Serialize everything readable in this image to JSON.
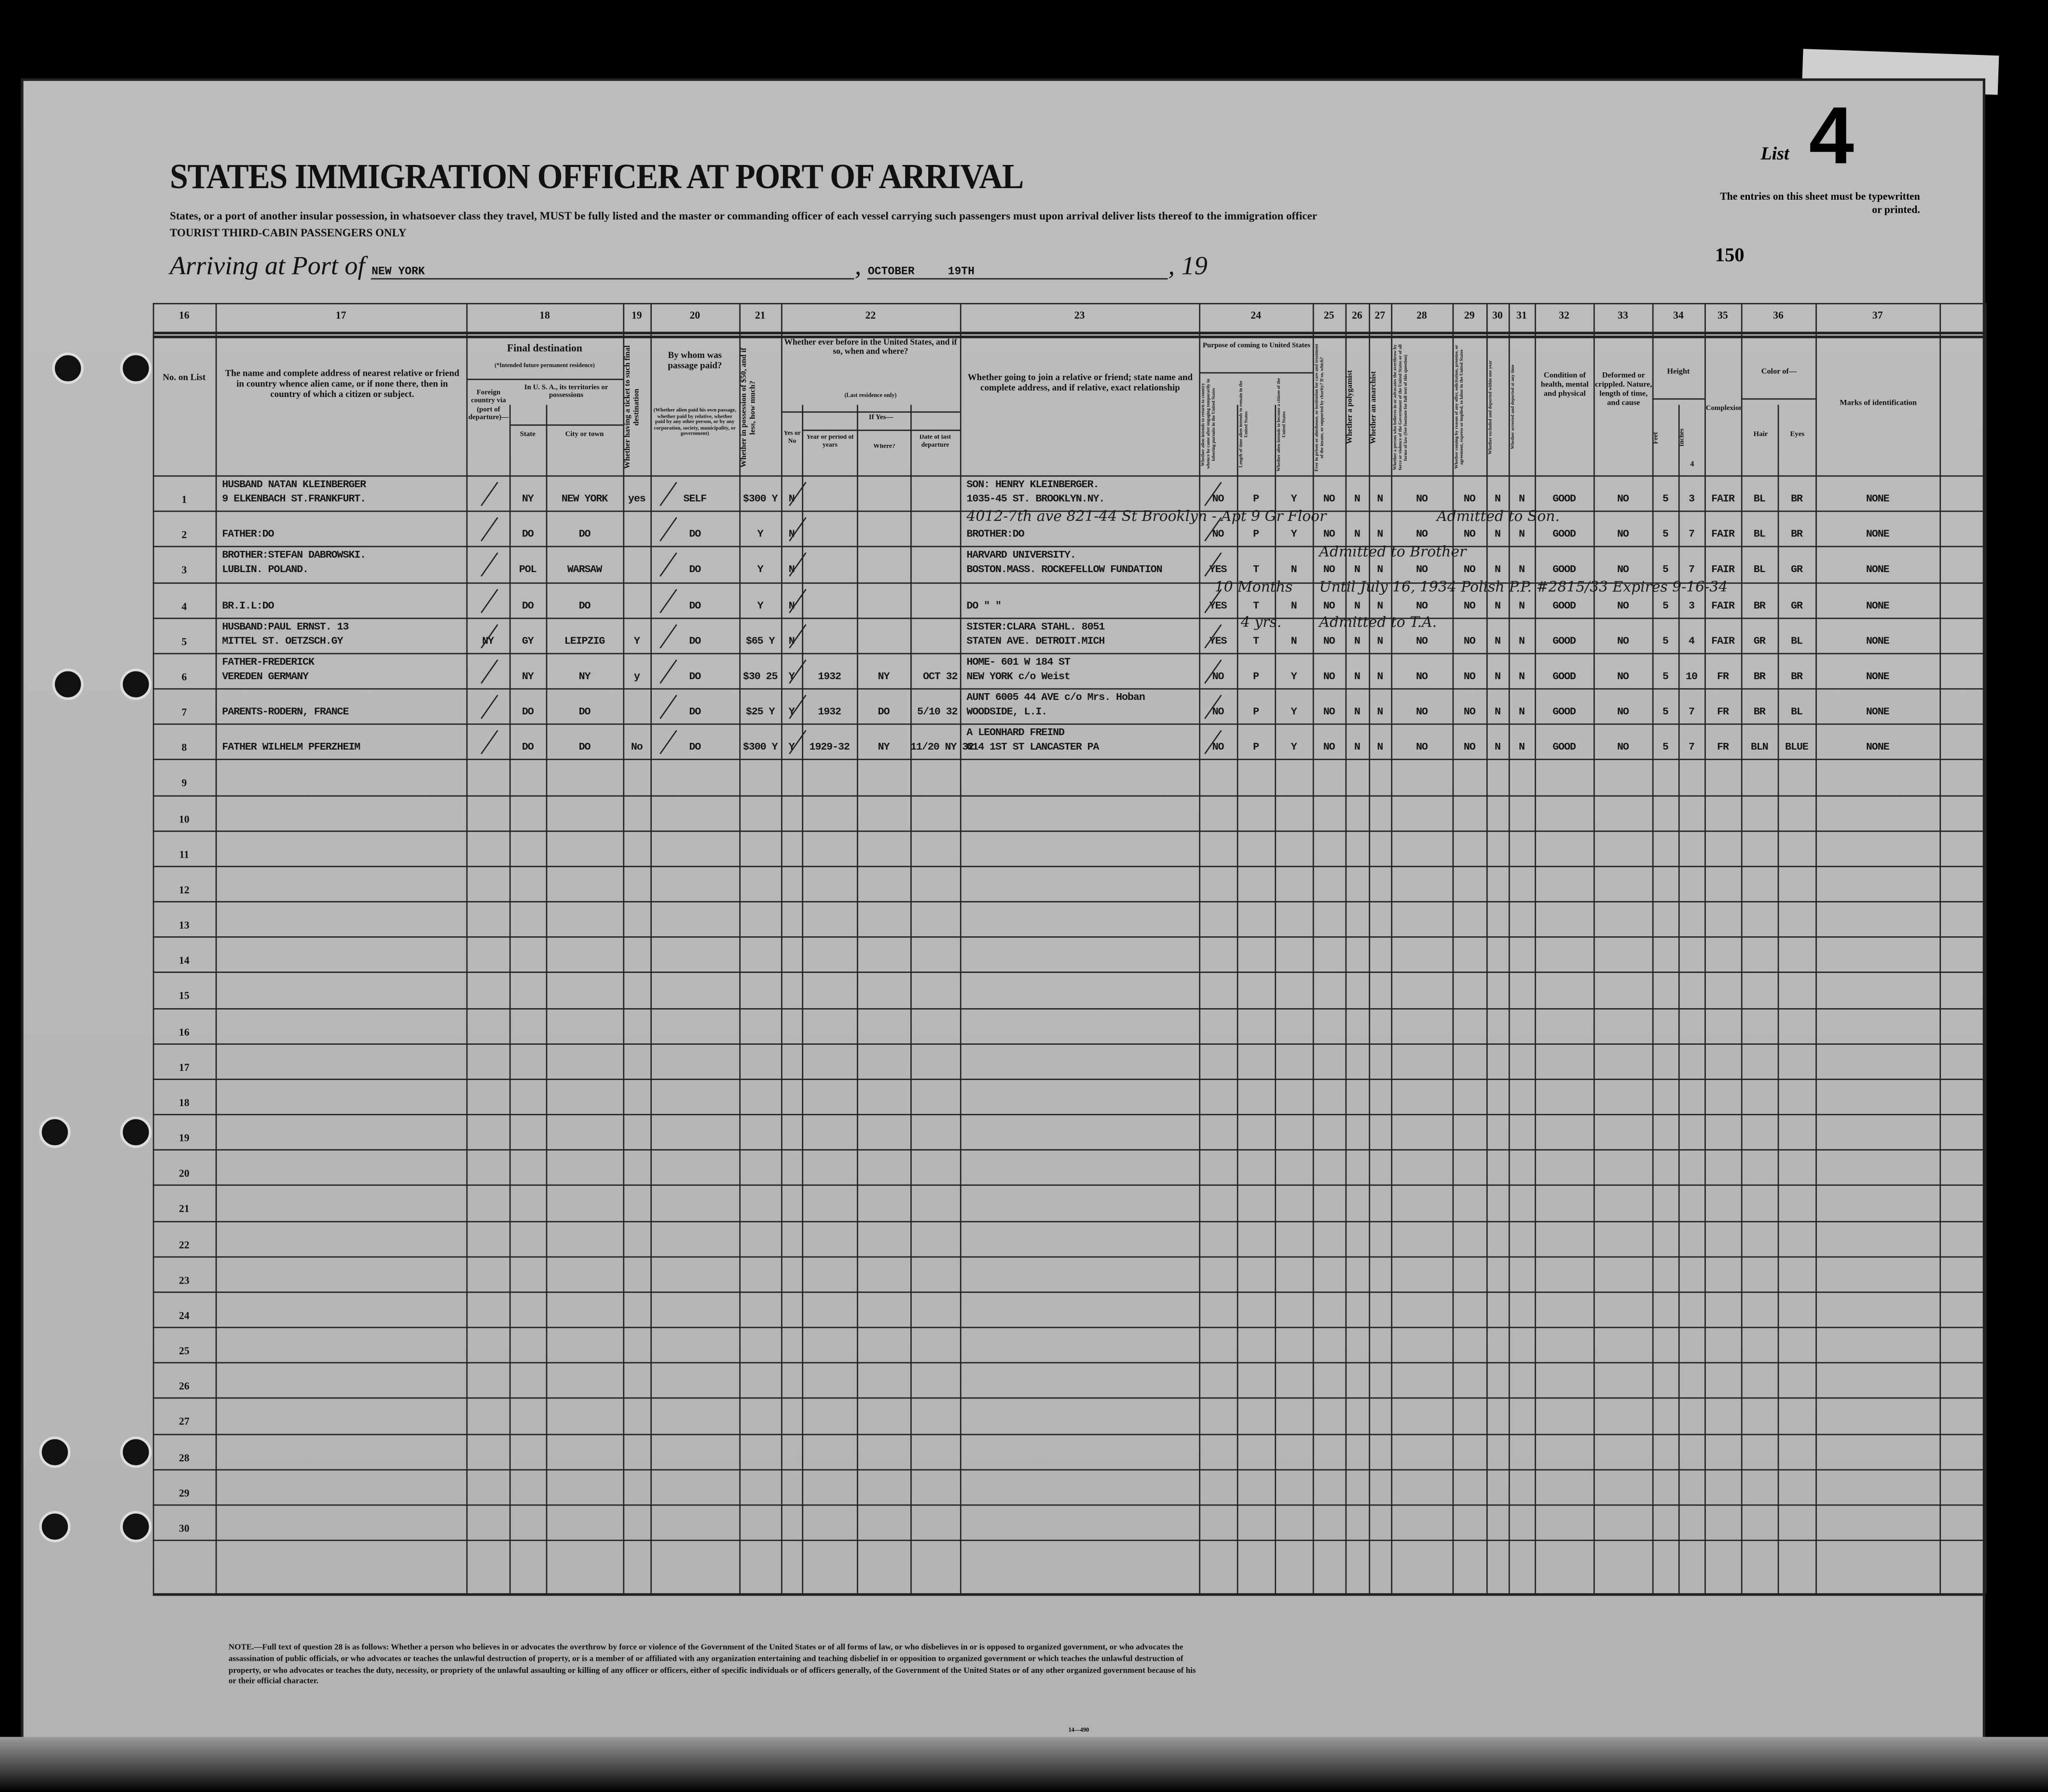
{
  "header": {
    "title": "STATES IMMIGRATION OFFICER AT PORT OF ARRIVAL",
    "subtitle": "States, or a port of another insular possession, in whatsoever class they travel, MUST be fully listed and the master or commanding officer of each vessel carrying such passengers must upon arrival deliver lists thereof to the immigration officer",
    "class_line": "TOURIST THIRD-CABIN PASSENGERS ONLY",
    "arriving_label": "Arriving at Port of",
    "port": "NEW YORK",
    "month": "OCTOBER",
    "day": "19TH",
    "year_prefix": "19",
    "list_label": "List",
    "list_number": "4",
    "entries_note": "The entries on this sheet must be typewritten or printed.",
    "sheet_number": "150"
  },
  "columns": {
    "c16": {
      "num": "16",
      "label": "No. on List"
    },
    "c17": {
      "num": "17",
      "label": "The name and complete address of nearest relative or friend in country whence alien came, or if none there, then in country of which a citizen or subject."
    },
    "c18": {
      "num": "18",
      "label": "Final destination",
      "sub": "(*Intended future permanent residence)",
      "foreign": "Foreign country via (port of departure)—",
      "usa": "In U. S. A., its territories or possessions",
      "state": "State",
      "city": "City or town"
    },
    "c19": {
      "num": "19",
      "label": "Whether having a ticket to such final destination"
    },
    "c20": {
      "num": "20",
      "label": "By whom was passage paid?",
      "sub": "(Whether alien paid his own passage, whether paid by relative, whether paid by any other person, or by any corporation, society, municipality, or government)"
    },
    "c21": {
      "num": "21",
      "label": "Whether in possession of $50, and if less, how much?"
    },
    "c22": {
      "num": "22",
      "label": "Whether ever before in the United States, and if so, when and where?",
      "sub": "(Last residence only)",
      "yesno": "Yes or No",
      "ifyes": "If Yes—",
      "year": "Year or period of years",
      "where": "Where?",
      "date": "Date of last departure"
    },
    "c23": {
      "num": "23",
      "label": "Whether going to join a relative or friend; state name and complete address, and if relative, exact relationship"
    },
    "c24": {
      "num": "24",
      "label": "Purpose of coming to United States",
      "a": "Whether alien intends to return to country whence he came after engaging temporarily in laboring pursuits in the United States",
      "b": "Length of time alien intends to remain in the United States",
      "c": "Whether alien intends to become a citizen of the United States"
    },
    "c25": {
      "num": "25",
      "label": "Ever in prison or almshouse, or institution for care and treatment of the insane, or supported by charity? If so, which?"
    },
    "c26": {
      "num": "26",
      "label": "Whether a polygamist"
    },
    "c27": {
      "num": "27",
      "label": "Whether an anarchist"
    },
    "c28": {
      "num": "28",
      "label": "Whether a person who believes in or advocates the overthrow by force or violence of the Government of the United States or of all forms of law (See footnote for full text of this question)"
    },
    "c29": {
      "num": "29",
      "label": "Whether coming by reason of any offer, solicitation, promise, or agreement, express or implied, to labor in the United States"
    },
    "c30": {
      "num": "30",
      "label": "Whether excluded and deported within one year"
    },
    "c31": {
      "num": "31",
      "label": "Whether arrested and deported at any time"
    },
    "c32": {
      "num": "32",
      "label": "Condition of health, mental and physical"
    },
    "c33": {
      "num": "33",
      "label": "Deformed or crippled. Nature, length of time, and cause"
    },
    "c34": {
      "num": "34",
      "label": "Height",
      "feet": "Feet",
      "inches": "Inches",
      "extra": "4"
    },
    "c35": {
      "num": "35",
      "label": "Complexion"
    },
    "c36": {
      "num": "36",
      "label": "Color of—",
      "hair": "Hair",
      "eyes": "Eyes"
    },
    "c37": {
      "num": "37",
      "label": "Marks of identification"
    }
  },
  "row_numbers": [
    "1",
    "2",
    "3",
    "4",
    "5",
    "6",
    "7",
    "8",
    "9",
    "10",
    "11",
    "12",
    "13",
    "14",
    "15",
    "16",
    "17",
    "18",
    "19",
    "20",
    "21",
    "22",
    "23",
    "24",
    "25",
    "26",
    "27",
    "28",
    "29",
    "30"
  ],
  "passengers": [
    {
      "name": [
        "HUSBAND NATAN KLEINBERGER",
        "9 ELKENBACH ST.FRANKFURT."
      ],
      "foreign": "",
      "state": "NY",
      "city": "NEW YORK",
      "ticket": "yes",
      "paid": "SELF",
      "money": "$300 Y",
      "before": "N",
      "year": "",
      "where": "",
      "date": "",
      "relative": [
        "SON: HENRY KLEINBERGER.",
        "1035-45 ST. BROOKLYN.NY."
      ],
      "p1": "NO",
      "p2": "P",
      "p3": "Y",
      "q25": "NO",
      "q26": "N",
      "q27": "N",
      "q28": "NO",
      "q29": "NO",
      "q30": "N",
      "q31": "N",
      "cond": "GOOD",
      "def": "NO",
      "feet": "5",
      "inch": "3",
      "comp": "FAIR",
      "hair": "BL",
      "eyes": "BR",
      "marks": "NONE"
    },
    {
      "name": [
        "",
        "FATHER:DO"
      ],
      "foreign": "",
      "state": "DO",
      "city": "DO",
      "ticket": "",
      "paid": "DO",
      "money": "Y",
      "before": "N",
      "year": "",
      "where": "",
      "date": "",
      "relative": [
        "",
        "BROTHER:DO"
      ],
      "p1": "NO",
      "p2": "P",
      "p3": "Y",
      "q25": "NO",
      "q26": "N",
      "q27": "N",
      "q28": "NO",
      "q29": "NO",
      "q30": "N",
      "q31": "N",
      "cond": "GOOD",
      "def": "NO",
      "feet": "5",
      "inch": "7",
      "comp": "FAIR",
      "hair": "BL",
      "eyes": "BR",
      "marks": "NONE"
    },
    {
      "name": [
        "BROTHER:STEFAN DABROWSKI.",
        "LUBLIN. POLAND."
      ],
      "foreign": "",
      "state": "POL",
      "city": "WARSAW",
      "ticket": "",
      "paid": "DO",
      "money": "Y",
      "before": "N",
      "year": "",
      "where": "",
      "date": "",
      "relative": [
        "HARVARD UNIVERSITY.",
        "BOSTON.MASS. ROCKEFELLOW FUNDATION"
      ],
      "p1": "YES",
      "p2": "T",
      "p3": "N",
      "q25": "NO",
      "q26": "N",
      "q27": "N",
      "q28": "NO",
      "q29": "NO",
      "q30": "N",
      "q31": "N",
      "cond": "GOOD",
      "def": "NO",
      "feet": "5",
      "inch": "7",
      "comp": "FAIR",
      "hair": "BL",
      "eyes": "GR",
      "marks": "NONE"
    },
    {
      "name": [
        "",
        "BR.I.L:DO"
      ],
      "foreign": "",
      "state": "DO",
      "city": "DO",
      "ticket": "",
      "paid": "DO",
      "money": "Y",
      "before": "N",
      "year": "",
      "where": "",
      "date": "",
      "relative": [
        "",
        "DO  \"  \""
      ],
      "p1": "YES",
      "p2": "T",
      "p3": "N",
      "q25": "NO",
      "q26": "N",
      "q27": "N",
      "q28": "NO",
      "q29": "NO",
      "q30": "N",
      "q31": "N",
      "cond": "GOOD",
      "def": "NO",
      "feet": "5",
      "inch": "3",
      "comp": "FAIR",
      "hair": "BR",
      "eyes": "GR",
      "marks": "NONE"
    },
    {
      "name": [
        "HUSBAND:PAUL ERNST. 13",
        "MITTEL ST. OETZSCH.GY"
      ],
      "foreign": "NY",
      "state": "GY",
      "city": "LEIPZIG",
      "ticket": "Y",
      "paid": "DO",
      "money": "$65 Y",
      "before": "N",
      "year": "",
      "where": "",
      "date": "",
      "relative": [
        "SISTER:CLARA STAHL. 8051",
        "STATEN AVE. DETROIT.MICH"
      ],
      "p1": "YES",
      "p2": "T",
      "p3": "N",
      "q25": "NO",
      "q26": "N",
      "q27": "N",
      "q28": "NO",
      "q29": "NO",
      "q30": "N",
      "q31": "N",
      "cond": "GOOD",
      "def": "NO",
      "feet": "5",
      "inch": "4",
      "comp": "FAIR",
      "hair": "GR",
      "eyes": "BL",
      "marks": "NONE"
    },
    {
      "name": [
        "FATHER-FREDERICK",
        "VEREDEN GERMANY"
      ],
      "foreign": "",
      "state": "NY",
      "city": "NY",
      "ticket": "y",
      "paid": "DO",
      "money": "$30 25",
      "before": "Y",
      "year": "1932",
      "where": "NY",
      "date": "OCT 32",
      "relative": [
        "HOME- 601 W 184 ST",
        "NEW YORK  c/o Weist"
      ],
      "p1": "NO",
      "p2": "P",
      "p3": "Y",
      "q25": "NO",
      "q26": "N",
      "q27": "N",
      "q28": "NO",
      "q29": "NO",
      "q30": "N",
      "q31": "N",
      "cond": "GOOD",
      "def": "NO",
      "feet": "5",
      "inch": "10",
      "comp": "FR",
      "hair": "BR",
      "eyes": "BR",
      "marks": "NONE"
    },
    {
      "name": [
        "",
        "PARENTS-RODERN, FRANCE"
      ],
      "foreign": "",
      "state": "DO",
      "city": "DO",
      "ticket": "",
      "paid": "DO",
      "money": "$25 Y",
      "before": "Y",
      "year": "1932",
      "where": "DO",
      "date": "5/10 32",
      "relative": [
        "AUNT  6005 44 AVE  c/o Mrs. Hoban",
        "WOODSIDE, L.I."
      ],
      "p1": "NO",
      "p2": "P",
      "p3": "Y",
      "q25": "NO",
      "q26": "N",
      "q27": "N",
      "q28": "NO",
      "q29": "NO",
      "q30": "N",
      "q31": "N",
      "cond": "GOOD",
      "def": "NO",
      "feet": "5",
      "inch": "7",
      "comp": "FR",
      "hair": "BR",
      "eyes": "BL",
      "marks": "NONE"
    },
    {
      "name": [
        "",
        "FATHER WILHELM PFERZHEIM"
      ],
      "foreign": "",
      "state": "DO",
      "city": "DO",
      "ticket": "No",
      "paid": "DO",
      "money": "$300 Y",
      "before": "Y",
      "year": "1929-32",
      "where": "NY",
      "date": "11/20 NY 32",
      "relative": [
        "A LEONHARD  FREIND",
        "614  1ST ST LANCASTER PA"
      ],
      "p1": "NO",
      "p2": "P",
      "p3": "Y",
      "q25": "NO",
      "q26": "N",
      "q27": "N",
      "q28": "NO",
      "q29": "NO",
      "q30": "N",
      "q31": "N",
      "cond": "GOOD",
      "def": "NO",
      "feet": "5",
      "inch": "7",
      "comp": "FR",
      "hair": "BLN",
      "eyes": "BLUE",
      "marks": "NONE"
    }
  ],
  "annotations": [
    "4012-7th ave  821-44 St Brooklyn - Apt 9 Gr Floor",
    "Admitted to Son.",
    "Admitted to Brother",
    "Until July 16, 1934  Polish P.P. #2815/33  Expires 9-16-34",
    "10 Months",
    "4 yrs.",
    "Admitted to T.A."
  ],
  "footnote": "NOTE.—Full text of question 28 is as follows: Whether a person who believes in or advocates the overthrow by force or violence of the Government of the United States or of all forms of law, or who disbelieves in or is opposed to organized government, or who advocates the assassination of public officials, or who advocates or teaches the unlawful destruction of property, or is a member of or affiliated with any organization entertaining and teaching disbelief in or opposition to organized government or which teaches the unlawful destruction of property, or who advocates or teaches the duty, necessity, or propriety of the unlawful assaulting or killing of any officer or officers, either of specific individuals or of officers generally, of the Government of the United States or of any other organized government because of his or their official character.",
  "form_number": "14—490"
}
